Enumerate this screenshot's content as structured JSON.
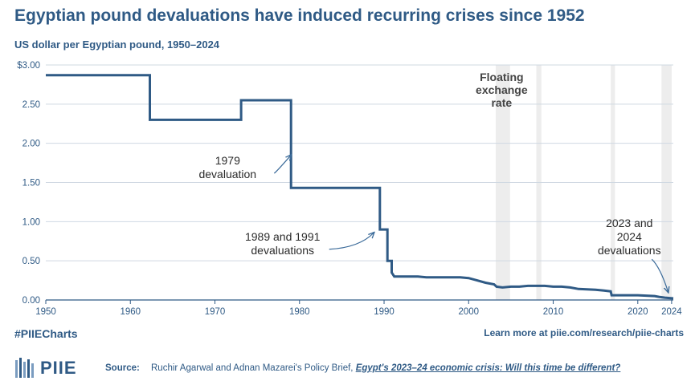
{
  "title": "Egyptian pound devaluations have induced recurring crises since 1952",
  "subtitle": "US dollar per Egyptian pound, 1950–2024",
  "chart_data": {
    "type": "line",
    "xlim": [
      1950,
      2024.2
    ],
    "ylim": [
      0,
      3
    ],
    "x_ticks": [
      1950,
      1960,
      1970,
      1980,
      1990,
      2000,
      2010,
      2020,
      2024
    ],
    "y_ticks": [
      0,
      0.5,
      1.0,
      1.5,
      2.0,
      2.5,
      3.0
    ],
    "y_tick_labels": [
      "0.00",
      "0.50",
      "1.00",
      "1.50",
      "2.00",
      "2.50",
      "$3.00"
    ],
    "grid": "horizontal",
    "line_color": "#2f5a85",
    "series": [
      {
        "values": [
          [
            1950,
            2.87
          ],
          [
            1962.3,
            2.87
          ],
          [
            1962.3,
            2.3
          ],
          [
            1973.1,
            2.3
          ],
          [
            1973.1,
            2.55
          ],
          [
            1979.0,
            2.55
          ],
          [
            1979.0,
            1.43
          ],
          [
            1989.5,
            1.43
          ],
          [
            1989.5,
            0.9
          ],
          [
            1990.4,
            0.9
          ],
          [
            1990.4,
            0.5
          ],
          [
            1990.9,
            0.5
          ],
          [
            1990.9,
            0.35
          ],
          [
            1991.2,
            0.3
          ],
          [
            1994,
            0.3
          ],
          [
            1995,
            0.29
          ],
          [
            1997,
            0.29
          ],
          [
            1999,
            0.29
          ],
          [
            2000,
            0.28
          ],
          [
            2001,
            0.25
          ],
          [
            2002,
            0.22
          ],
          [
            2003,
            0.2
          ],
          [
            2003.3,
            0.17
          ],
          [
            2004,
            0.16
          ],
          [
            2005,
            0.17
          ],
          [
            2006,
            0.17
          ],
          [
            2007,
            0.18
          ],
          [
            2008,
            0.18
          ],
          [
            2009,
            0.18
          ],
          [
            2010,
            0.17
          ],
          [
            2011,
            0.17
          ],
          [
            2012,
            0.16
          ],
          [
            2013,
            0.14
          ],
          [
            2015,
            0.13
          ],
          [
            2016,
            0.12
          ],
          [
            2016.8,
            0.11
          ],
          [
            2016.9,
            0.06
          ],
          [
            2018,
            0.06
          ],
          [
            2020,
            0.06
          ],
          [
            2022,
            0.05
          ],
          [
            2022.5,
            0.04
          ],
          [
            2023.2,
            0.03
          ],
          [
            2024.2,
            0.02
          ]
        ]
      }
    ],
    "shaded_periods": [
      [
        2003.2,
        2004.9
      ],
      [
        2008.0,
        2008.6
      ],
      [
        2016.8,
        2017.3
      ],
      [
        2022.8,
        2024.0
      ]
    ],
    "annotations": [
      {
        "lines": [
          "1979",
          "devaluation"
        ],
        "x": 1971.5,
        "y": 1.73,
        "arrow_to": [
          1979.0,
          1.85
        ]
      },
      {
        "lines": [
          "1989 and 1991",
          "devaluations"
        ],
        "x": 1978,
        "y": 0.76,
        "arrow_to": [
          1988.8,
          0.86
        ]
      },
      {
        "lines": [
          "2023 and",
          "2024",
          "devaluations"
        ],
        "x": 2019,
        "y": 0.93,
        "arrow_to": [
          2023.6,
          0.1
        ]
      }
    ],
    "period_label": [
      "Floating",
      "exchange",
      "rate"
    ]
  },
  "footer": {
    "hashtag": "#PIIECharts",
    "learn_more": "Learn more at piie.com/research/piie-charts"
  },
  "logo": {
    "text": "PIIE"
  },
  "source": {
    "label": "Source:",
    "text": "Ruchir Agarwal and Adnan Mazarei's Policy Brief, ",
    "link": "Egypt's 2023–24 economic crisis: Will this time be different?"
  }
}
